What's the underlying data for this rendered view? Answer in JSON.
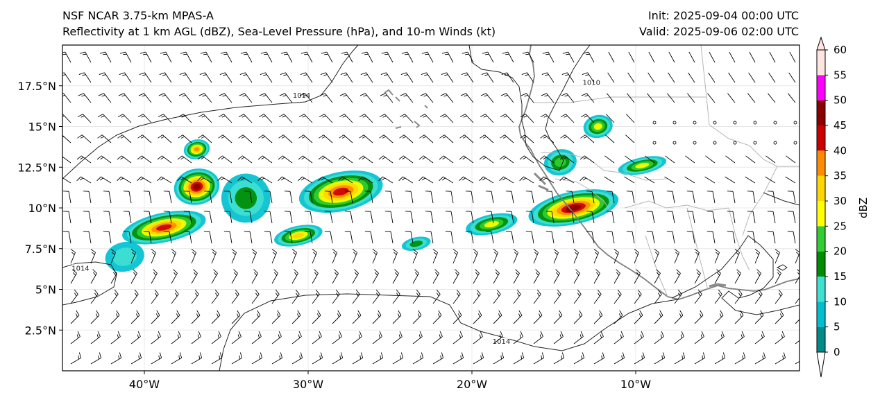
{
  "header": {
    "left_line1": "NSF NCAR 3.75-km MPAS-A",
    "left_line2": "Reflectivity at 1 km AGL (dBZ), Sea-Level Pressure (hPa), and 10-m Winds (kt)",
    "right_line1": "Init: 2025-09-04 00:00 UTC",
    "right_line2": "Valid: 2025-09-06 02:00 UTC"
  },
  "map": {
    "extent": {
      "lon_min": -45,
      "lon_max": 0,
      "lat_min": 0,
      "lat_max": 20
    },
    "x_ticks": [
      {
        "lon": -40,
        "label": "40°W"
      },
      {
        "lon": -30,
        "label": "30°W"
      },
      {
        "lon": -20,
        "label": "20°W"
      },
      {
        "lon": -10,
        "label": "10°W"
      }
    ],
    "y_ticks": [
      {
        "lat": 2.5,
        "label": "2.5°N"
      },
      {
        "lat": 5,
        "label": "5°N"
      },
      {
        "lat": 7.5,
        "label": "7.5°N"
      },
      {
        "lat": 10,
        "label": "10°N"
      },
      {
        "lat": 12.5,
        "label": "12.5°N"
      },
      {
        "lat": 15,
        "label": "15°N"
      },
      {
        "lat": 17.5,
        "label": "17.5°N"
      }
    ],
    "isobar_labels": [
      {
        "text": "1014",
        "lon": -30.4,
        "lat": 16.8
      },
      {
        "text": "1010",
        "lon": -12.7,
        "lat": 17.6
      },
      {
        "text": "1014",
        "lon": -43.9,
        "lat": 6.2
      },
      {
        "text": "1014",
        "lon": -18.2,
        "lat": 1.7
      }
    ]
  },
  "reflectivity_cells": [
    {
      "lon": -38.8,
      "lat": 8.8,
      "dbz": 40,
      "rx": 2.6,
      "ry": 0.9
    },
    {
      "lon": -36.8,
      "lat": 11.3,
      "dbz": 45,
      "rx": 1.4,
      "ry": 1.1
    },
    {
      "lon": -36.8,
      "lat": 13.6,
      "dbz": 35,
      "rx": 0.8,
      "ry": 0.6
    },
    {
      "lon": -30.6,
      "lat": 8.3,
      "dbz": 30,
      "rx": 1.5,
      "ry": 0.6
    },
    {
      "lon": -28.0,
      "lat": 11.0,
      "dbz": 40,
      "rx": 2.6,
      "ry": 1.2
    },
    {
      "lon": -23.4,
      "lat": 7.8,
      "dbz": 15,
      "rx": 0.9,
      "ry": 0.4
    },
    {
      "lon": -18.8,
      "lat": 9.0,
      "dbz": 25,
      "rx": 1.6,
      "ry": 0.6
    },
    {
      "lon": -13.8,
      "lat": 10.0,
      "dbz": 45,
      "rx": 2.8,
      "ry": 1.0
    },
    {
      "lon": -14.6,
      "lat": 12.8,
      "dbz": 20,
      "rx": 1.0,
      "ry": 0.8
    },
    {
      "lon": -12.3,
      "lat": 15.0,
      "dbz": 25,
      "rx": 0.9,
      "ry": 0.7
    },
    {
      "lon": -9.6,
      "lat": 12.6,
      "dbz": 25,
      "rx": 1.5,
      "ry": 0.5
    },
    {
      "lon": -33.8,
      "lat": 10.6,
      "dbz": 15,
      "rx": 1.5,
      "ry": 1.5
    },
    {
      "lon": -41.2,
      "lat": 7.0,
      "dbz": 10,
      "rx": 1.2,
      "ry": 0.9
    }
  ],
  "colorbar": {
    "label": "dBZ",
    "bounds": [
      0,
      5,
      10,
      15,
      20,
      25,
      30,
      35,
      40,
      45,
      50,
      55,
      60
    ],
    "tick_labels": [
      "0",
      "5",
      "10",
      "15",
      "20",
      "25",
      "30",
      "35",
      "40",
      "45",
      "50",
      "55",
      "60"
    ],
    "colors": [
      "#008b8b",
      "#00c0d0",
      "#40e0d0",
      "#008c00",
      "#32cd32",
      "#ffff00",
      "#ffd700",
      "#ff8c00",
      "#cc0000",
      "#8b0000",
      "#ff00ff",
      "#ffe4e1"
    ],
    "under_color": "#ffffff",
    "over_color": "#ffe4e1"
  },
  "colors": {
    "isobar": "#222222",
    "coastline": "#7f7f7f",
    "borders": "#b5b5b5",
    "gridline": "#e8e8e8",
    "barb": "#000000"
  }
}
